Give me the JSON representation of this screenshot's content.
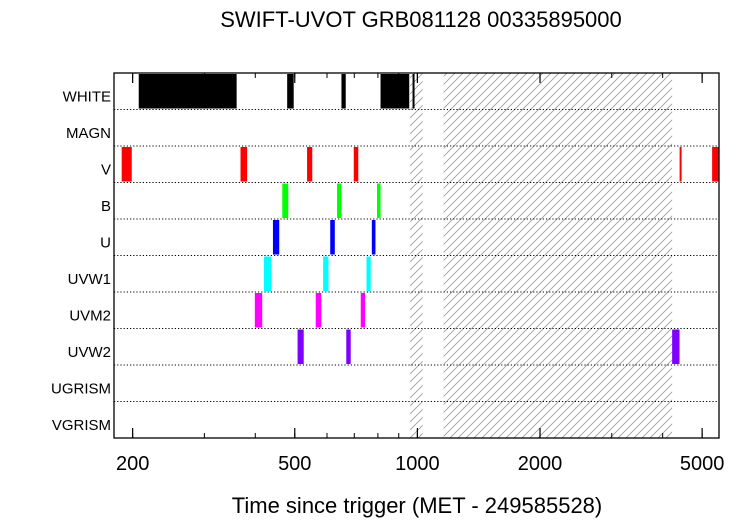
{
  "chart_data": {
    "type": "timeline",
    "title": "SWIFT-UVOT GRB081128 00335895000",
    "xlabel": "Time since trigger (MET - 249585528)",
    "x_scale": "log",
    "xlim": [
      180,
      5500
    ],
    "x_ticks": [
      {
        "value": 200,
        "label": "200"
      },
      {
        "value": 500,
        "label": "500"
      },
      {
        "value": 1000,
        "label": "1000"
      },
      {
        "value": 2000,
        "label": "2000"
      },
      {
        "value": 5000,
        "label": "5000"
      }
    ],
    "rows": [
      "WHITE",
      "MAGN",
      "V",
      "B",
      "U",
      "UVW1",
      "UVM2",
      "UVW2",
      "UGRISM",
      "VGRISM"
    ],
    "colors": {
      "WHITE": "#000000",
      "V": "#ff0000",
      "B": "#00ff00",
      "U": "#0000ff",
      "UVW1": "#00ffff",
      "UVM2": "#ff00ff",
      "UVW2": "#8000ff"
    },
    "segments": [
      {
        "filter": "WHITE",
        "start": 207,
        "end": 360
      },
      {
        "filter": "WHITE",
        "start": 479,
        "end": 497
      },
      {
        "filter": "WHITE",
        "start": 651,
        "end": 667
      },
      {
        "filter": "WHITE",
        "start": 812,
        "end": 955
      },
      {
        "filter": "WHITE",
        "start": 973,
        "end": 977
      },
      {
        "filter": "V",
        "start": 188,
        "end": 199
      },
      {
        "filter": "V",
        "start": 368,
        "end": 382
      },
      {
        "filter": "V",
        "start": 536,
        "end": 552
      },
      {
        "filter": "V",
        "start": 698,
        "end": 716
      },
      {
        "filter": "V",
        "start": 4402,
        "end": 4440
      },
      {
        "filter": "V",
        "start": 5290,
        "end": 5500
      },
      {
        "filter": "B",
        "start": 466,
        "end": 482
      },
      {
        "filter": "B",
        "start": 635,
        "end": 651
      },
      {
        "filter": "B",
        "start": 796,
        "end": 812
      },
      {
        "filter": "U",
        "start": 442,
        "end": 458
      },
      {
        "filter": "U",
        "start": 611,
        "end": 627
      },
      {
        "filter": "U",
        "start": 773,
        "end": 789
      },
      {
        "filter": "UVW1",
        "start": 420,
        "end": 438
      },
      {
        "filter": "UVW1",
        "start": 587,
        "end": 605
      },
      {
        "filter": "UVW1",
        "start": 750,
        "end": 768
      },
      {
        "filter": "UVM2",
        "start": 399,
        "end": 416
      },
      {
        "filter": "UVM2",
        "start": 563,
        "end": 581
      },
      {
        "filter": "UVM2",
        "start": 726,
        "end": 744
      },
      {
        "filter": "UVW2",
        "start": 508,
        "end": 526
      },
      {
        "filter": "UVW2",
        "start": 669,
        "end": 686
      },
      {
        "filter": "UVW2",
        "start": 4220,
        "end": 4400
      }
    ],
    "hatched_intervals": [
      {
        "start": 960,
        "end": 1030
      },
      {
        "start": 1160,
        "end": 4220
      }
    ]
  }
}
